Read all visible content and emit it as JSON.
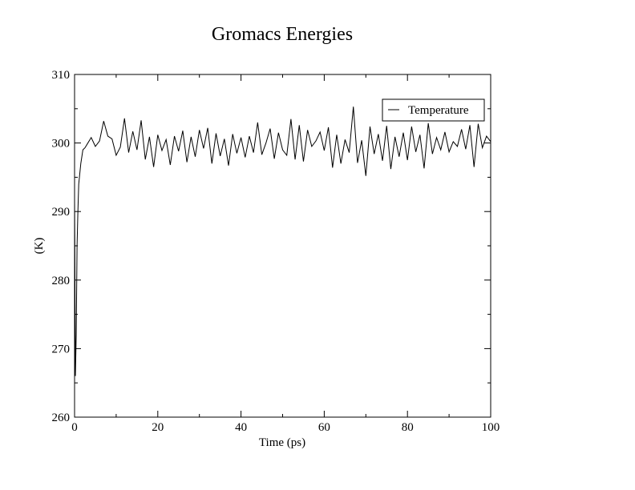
{
  "chart_data": {
    "type": "line",
    "title": "Gromacs Energies",
    "x_label": "Time (ps)",
    "y_label": "(K)",
    "x": [
      0,
      0.2,
      0.4,
      0.6,
      0.8,
      1,
      1.5,
      2,
      2.5,
      3,
      4,
      5,
      6,
      7,
      8,
      9,
      10,
      11,
      12,
      13,
      14,
      15,
      16,
      17,
      18,
      19,
      20,
      21,
      22,
      23,
      24,
      25,
      26,
      27,
      28,
      29,
      30,
      31,
      32,
      33,
      34,
      35,
      36,
      37,
      38,
      39,
      40,
      41,
      42,
      43,
      44,
      45,
      46,
      47,
      48,
      49,
      50,
      51,
      52,
      53,
      54,
      55,
      56,
      57,
      58,
      59,
      60,
      61,
      62,
      63,
      64,
      65,
      66,
      67,
      68,
      69,
      70,
      71,
      72,
      73,
      74,
      75,
      76,
      77,
      78,
      79,
      80,
      81,
      82,
      83,
      84,
      85,
      86,
      87,
      88,
      89,
      90,
      91,
      92,
      93,
      94,
      95,
      96,
      97,
      98,
      99,
      100
    ],
    "series": [
      {
        "name": "Temperature",
        "color": "#000000",
        "values": [
          292,
          266,
          272,
          285,
          290,
          294,
          297,
          299,
          299.3,
          299.8,
          300.8,
          299.5,
          300.3,
          303.2,
          301.0,
          300.6,
          298.2,
          299.4,
          303.6,
          298.6,
          301.7,
          299.0,
          303.3,
          297.6,
          300.9,
          296.5,
          301.2,
          298.9,
          300.5,
          296.8,
          301.0,
          298.8,
          301.8,
          297.2,
          300.9,
          298.0,
          301.9,
          299.2,
          302.2,
          297.0,
          301.4,
          298.1,
          300.6,
          296.7,
          301.3,
          298.5,
          300.8,
          297.9,
          301.0,
          298.6,
          303.0,
          298.3,
          300.0,
          302.1,
          297.7,
          301.5,
          299.0,
          298.2,
          303.5,
          297.6,
          302.6,
          297.3,
          301.9,
          299.5,
          300.3,
          301.6,
          298.9,
          302.3,
          296.4,
          301.2,
          297.0,
          300.5,
          298.6,
          305.3,
          297.1,
          300.4,
          295.2,
          302.4,
          298.4,
          301.3,
          297.4,
          302.5,
          296.2,
          300.9,
          298.0,
          301.5,
          297.5,
          302.4,
          298.7,
          301.2,
          296.3,
          302.9,
          298.4,
          300.8,
          299.0,
          301.6,
          298.7,
          300.2,
          299.5,
          302.0,
          299.1,
          302.6,
          296.5,
          302.8,
          299.3,
          301.0,
          300.2
        ]
      }
    ],
    "xlim": [
      0,
      100
    ],
    "xticks": [
      0,
      20,
      40,
      60,
      80,
      100
    ],
    "xminorticks": [
      10,
      30,
      50,
      70,
      90
    ],
    "ylim": [
      260,
      310
    ],
    "yticks": [
      260,
      270,
      280,
      290,
      300,
      310
    ],
    "yminorticks": [
      265,
      275,
      285,
      295,
      305
    ],
    "legend": "top-right"
  }
}
